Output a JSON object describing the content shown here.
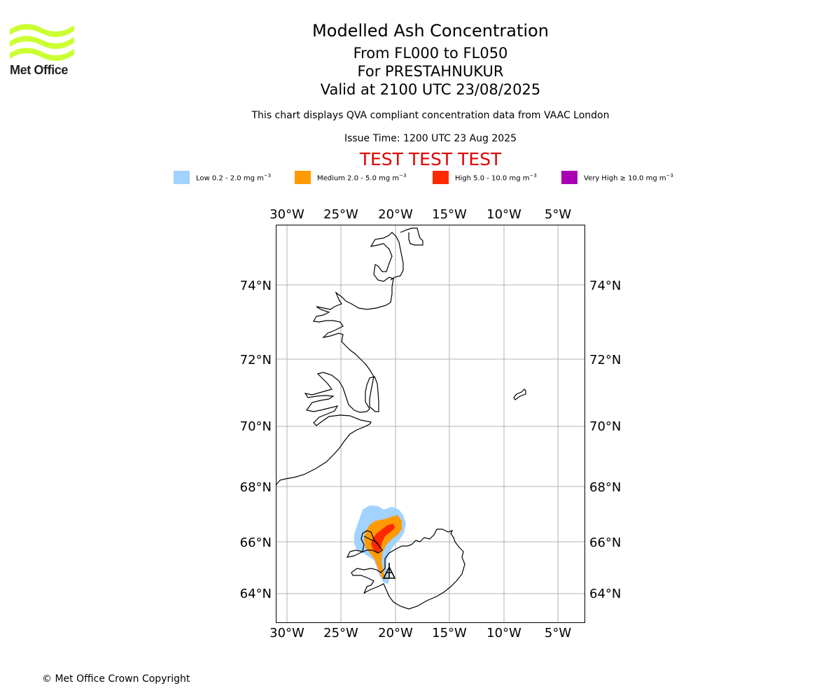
{
  "logo": {
    "text": "Met Office",
    "color": "#ccff33"
  },
  "header": {
    "title": "Modelled Ash Concentration",
    "levels": "From FL000 to FL050",
    "volcano": "For PRESTAHNUKUR",
    "valid": "Valid at 2100 UTC 23/08/2025",
    "subtitle": "This chart displays QVA compliant concentration data from VAAC London",
    "issue_time": "Issue Time: 1200 UTC 23 Aug 2025",
    "test_banner": "TEST TEST TEST"
  },
  "legend": [
    {
      "label": "Low 0.2 - 2.0 mg m",
      "unit_exp": "−3",
      "color": "#a2d2fe"
    },
    {
      "label": "Medium 2.0 - 5.0 mg m",
      "unit_exp": "−3",
      "color": "#ff9a00"
    },
    {
      "label": "High 5.0 - 10.0 mg m",
      "unit_exp": "−3",
      "color": "#ff2800"
    },
    {
      "label": "Very High ≥ 10.0 mg m",
      "unit_exp": "−3",
      "color": "#a900b4"
    }
  ],
  "map": {
    "lon_ticks": [
      "30°W",
      "25°W",
      "20°W",
      "15°W",
      "10°W",
      "5°W"
    ],
    "lat_ticks": [
      "74°N",
      "72°N",
      "70°N",
      "68°N",
      "66°N",
      "64°N"
    ],
    "volcano_marker": "triangle",
    "grid": true
  },
  "footer": "© Met Office Crown Copyright"
}
